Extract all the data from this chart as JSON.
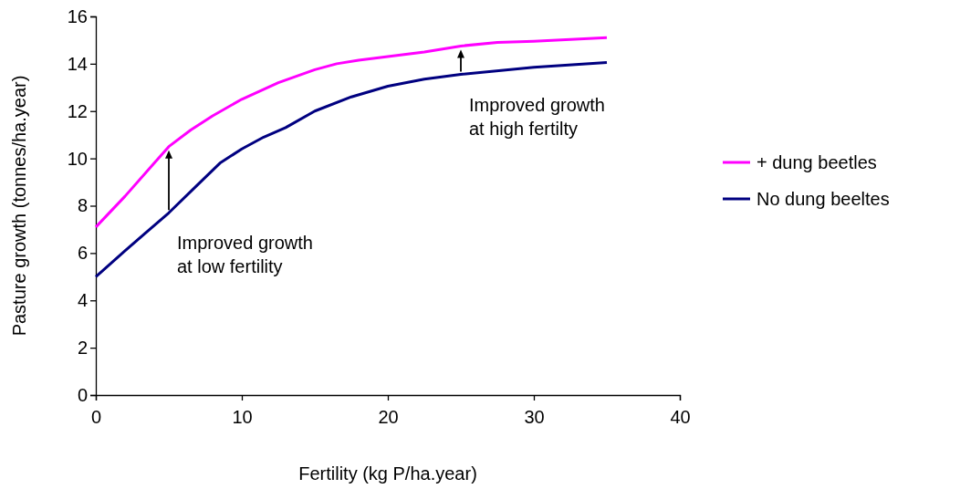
{
  "chart_data": {
    "type": "line",
    "xlabel": "Fertility (kg P/ha.year)",
    "ylabel": "Pasture growth (tonnes/ha.year)",
    "xlim": [
      0,
      40
    ],
    "xticks": [
      0,
      10,
      20,
      30,
      40
    ],
    "ylim": [
      0,
      16
    ],
    "yticks": [
      0,
      2,
      4,
      6,
      8,
      10,
      12,
      14,
      16
    ],
    "grid": false,
    "legend": "right",
    "marker": "none",
    "line_style": "solid",
    "series": [
      {
        "name": "+ dung beetles",
        "color": "#ff00ff",
        "x": [
          0,
          2,
          4,
          5,
          6.5,
          8,
          10,
          12.5,
          15,
          16.5,
          18,
          20,
          22.5,
          25,
          27.5,
          30,
          35
        ],
        "values": [
          7.1,
          8.4,
          9.8,
          10.5,
          11.2,
          11.8,
          12.5,
          13.2,
          13.75,
          14.0,
          14.15,
          14.3,
          14.5,
          14.75,
          14.9,
          14.95,
          15.1
        ]
      },
      {
        "name": "No dung beeltes",
        "color": "#000080",
        "x": [
          0,
          2,
          5,
          7,
          8.5,
          10,
          11.5,
          13,
          15,
          17.5,
          20,
          22.5,
          25,
          30,
          35
        ],
        "values": [
          5.0,
          6.1,
          7.7,
          8.9,
          9.8,
          10.4,
          10.9,
          11.3,
          12.0,
          12.6,
          13.05,
          13.35,
          13.55,
          13.85,
          14.05
        ]
      }
    ],
    "annotations": [
      {
        "text": "Improved growth\nat low fertility",
        "x": 5,
        "y": 7.7
      },
      {
        "text": "Improved growth\nat high fertilty",
        "x": 25,
        "y": 13.55
      }
    ]
  }
}
